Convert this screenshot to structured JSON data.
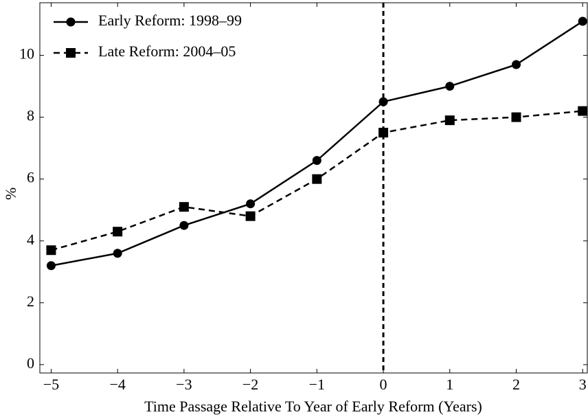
{
  "chart_data": {
    "type": "line",
    "xlabel": "Time Passage Relative To Year of Early Reform (Years)",
    "ylabel": "%",
    "x": [
      -5,
      -4,
      -3,
      -2,
      -1,
      0,
      1,
      2,
      3
    ],
    "series": [
      {
        "name": "Early Reform: 1998–99",
        "color": "#000000",
        "dash": "solid",
        "marker": "circle",
        "values": [
          3.2,
          3.6,
          4.5,
          5.2,
          6.6,
          8.5,
          9.0,
          9.7,
          11.1
        ]
      },
      {
        "name": "Late Reform: 2004–05",
        "color": "#000000",
        "dash": "dashed",
        "marker": "square",
        "values": [
          3.7,
          4.3,
          5.1,
          4.8,
          6.0,
          7.5,
          7.9,
          8.0,
          8.2
        ]
      }
    ],
    "xlim": [
      -5.17,
      3.07
    ],
    "ylim": [
      -0.27,
      11.7
    ],
    "xticks": [
      {
        "value": -5,
        "label": "−5"
      },
      {
        "value": -4,
        "label": "−4"
      },
      {
        "value": -3,
        "label": "−3"
      },
      {
        "value": -2,
        "label": "−2"
      },
      {
        "value": -1,
        "label": "−1"
      },
      0,
      1,
      2,
      3
    ],
    "yticks": [
      0,
      2,
      4,
      6,
      8,
      10
    ],
    "vline": 0,
    "grid": false,
    "legend": "upper-left"
  }
}
